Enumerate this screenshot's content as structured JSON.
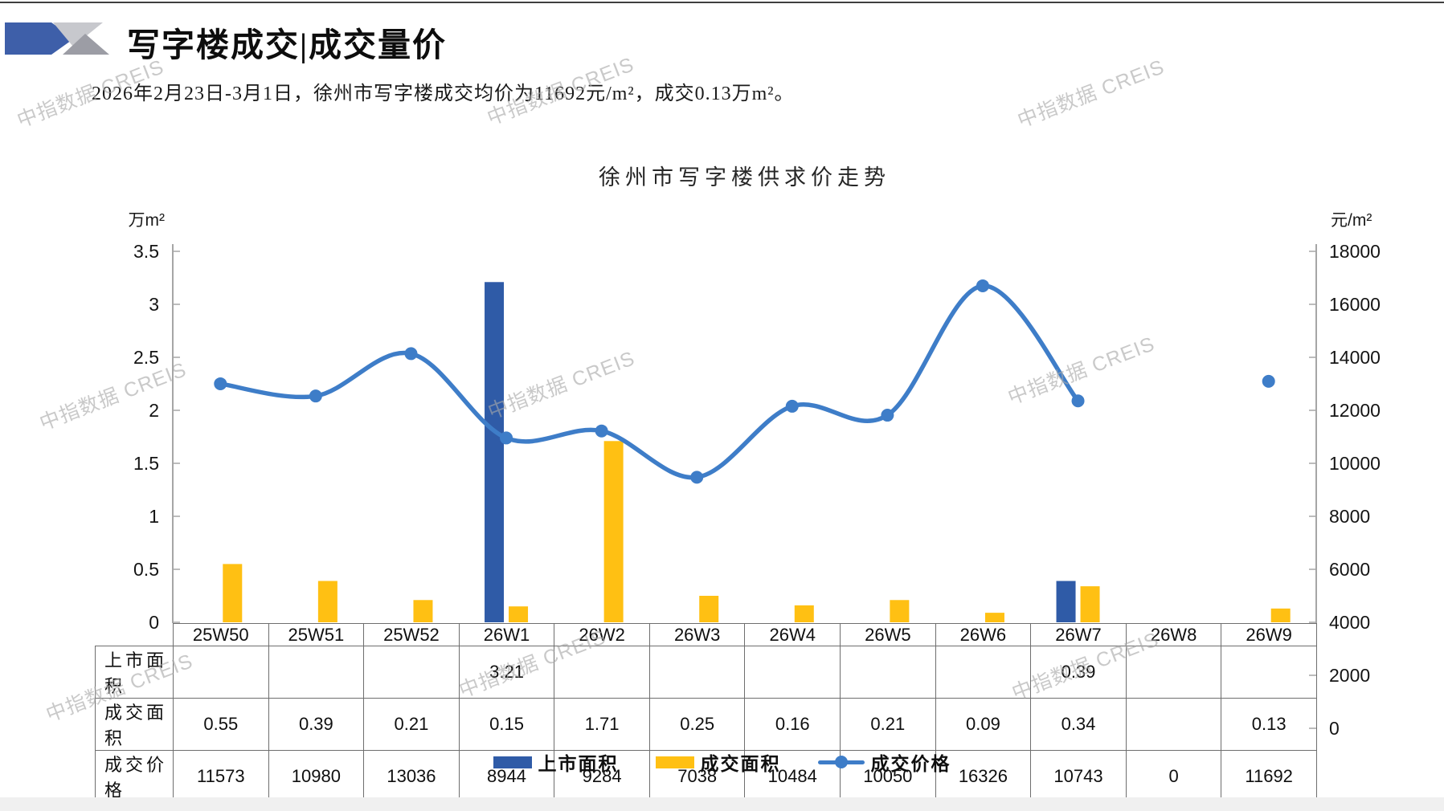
{
  "header": {
    "title": "写字楼成交|成交量价",
    "subtitle": "2026年2月23日-3月1日，徐州市写字楼成交均价为11692元/m²，成交0.13万m²。"
  },
  "watermark": {
    "text": "中指数据 CREIS"
  },
  "chart_data": {
    "type": "bar+line combo",
    "title": "徐州市写字楼供求价走势",
    "categories": [
      "25W50",
      "25W51",
      "25W52",
      "26W1",
      "26W2",
      "26W3",
      "26W4",
      "26W5",
      "26W6",
      "26W7",
      "26W8",
      "26W9"
    ],
    "left_axis": {
      "title": "万m²",
      "min": 0,
      "max": 3.5,
      "ticks": [
        "3.5",
        "3",
        "2.5",
        "2",
        "1.5",
        "1",
        "0.5",
        "0"
      ]
    },
    "right_axis": {
      "title": "元/m²",
      "min": 0,
      "max": 18000,
      "ticks": [
        "18000",
        "16000",
        "14000",
        "12000",
        "10000",
        "8000",
        "6000",
        "4000",
        "2000",
        "0"
      ]
    },
    "series": [
      {
        "name": "上市面积",
        "type": "bar",
        "axis": "left",
        "color": "#2F5BA7",
        "values": [
          null,
          null,
          null,
          3.21,
          null,
          null,
          null,
          null,
          null,
          0.39,
          null,
          null
        ]
      },
      {
        "name": "成交面积",
        "type": "bar",
        "axis": "left",
        "color": "#FFC013",
        "values": [
          0.55,
          0.39,
          0.21,
          0.15,
          1.71,
          0.25,
          0.16,
          0.21,
          0.09,
          0.34,
          null,
          0.13
        ]
      },
      {
        "name": "成交价格",
        "type": "line",
        "axis": "right",
        "color": "#3E7DC8",
        "values": [
          11573,
          10980,
          13036,
          8944,
          9284,
          7038,
          10484,
          10050,
          16326,
          10743,
          null,
          11692
        ]
      }
    ],
    "legend_position": "bottom",
    "grid": false
  },
  "table": {
    "rows": [
      {
        "label": "上市面积",
        "values": [
          "",
          "",
          "",
          "3.21",
          "",
          "",
          "",
          "",
          "",
          "0.39",
          "",
          ""
        ]
      },
      {
        "label": "成交面积",
        "values": [
          "0.55",
          "0.39",
          "0.21",
          "0.15",
          "1.71",
          "0.25",
          "0.16",
          "0.21",
          "0.09",
          "0.34",
          "",
          "0.13"
        ]
      },
      {
        "label": "成交价格",
        "values": [
          "11573",
          "10980",
          "13036",
          "8944",
          "9284",
          "7038",
          "10484",
          "10050",
          "16326",
          "10743",
          "0",
          "11692"
        ]
      }
    ]
  },
  "legend": {
    "items": [
      {
        "label": "上市面积",
        "marker": "bar",
        "color": "#2F5BA7"
      },
      {
        "label": "成交面积",
        "marker": "bar",
        "color": "#FFC013"
      },
      {
        "label": "成交价格",
        "marker": "line-dot",
        "color": "#3E7DC8"
      }
    ]
  }
}
